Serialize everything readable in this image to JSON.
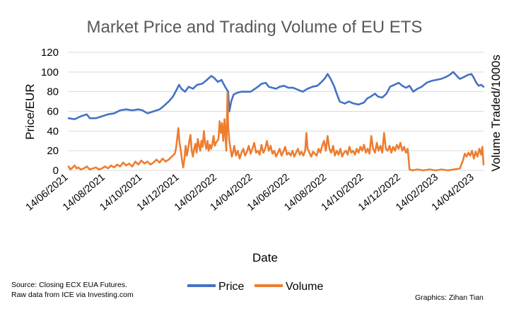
{
  "chart_data": {
    "type": "line",
    "title": "Market Price and Trading Volume of EU ETS",
    "xlabel": "Date",
    "ylabel": "Price/EUR",
    "y2label": "Volume Traded/1000s",
    "ylim": [
      0,
      120
    ],
    "yticks": [
      "0",
      "20",
      "40",
      "60",
      "80",
      "100",
      "120"
    ],
    "grid": true,
    "legend_position": "bottom",
    "x_start_date": "2021-06-14",
    "x_end_date": "2023-05-15",
    "x_tick_labels": [
      "14/06/2021",
      "14/08/2021",
      "14/10/2021",
      "14/12/2021",
      "14/02/2022",
      "14/04/2022",
      "14/06/2022",
      "14/08/2022",
      "14/10/2022",
      "14/12/2022",
      "14/02/2023",
      "14/04/2023"
    ],
    "x_tick_days": [
      0,
      61,
      122,
      183,
      245,
      304,
      365,
      426,
      487,
      548,
      610,
      669
    ],
    "series": [
      {
        "name": "Price",
        "color": "#4472C4",
        "points": [
          [
            0,
            53
          ],
          [
            10,
            52
          ],
          [
            20,
            55
          ],
          [
            30,
            57
          ],
          [
            35,
            53
          ],
          [
            45,
            53
          ],
          [
            55,
            55
          ],
          [
            65,
            57
          ],
          [
            75,
            58
          ],
          [
            85,
            61
          ],
          [
            95,
            62
          ],
          [
            105,
            61
          ],
          [
            115,
            62
          ],
          [
            122,
            61
          ],
          [
            130,
            58
          ],
          [
            140,
            60
          ],
          [
            150,
            62
          ],
          [
            158,
            66
          ],
          [
            165,
            70
          ],
          [
            172,
            75
          ],
          [
            178,
            82
          ],
          [
            182,
            87
          ],
          [
            186,
            83
          ],
          [
            192,
            80
          ],
          [
            198,
            85
          ],
          [
            205,
            83
          ],
          [
            212,
            87
          ],
          [
            220,
            88
          ],
          [
            228,
            92
          ],
          [
            235,
            96
          ],
          [
            240,
            94
          ],
          [
            246,
            90
          ],
          [
            252,
            92
          ],
          [
            258,
            85
          ],
          [
            263,
            80
          ],
          [
            265,
            60
          ],
          [
            268,
            70
          ],
          [
            272,
            77
          ],
          [
            278,
            79
          ],
          [
            285,
            80
          ],
          [
            292,
            80
          ],
          [
            300,
            80
          ],
          [
            305,
            82
          ],
          [
            312,
            85
          ],
          [
            318,
            88
          ],
          [
            325,
            89
          ],
          [
            330,
            85
          ],
          [
            336,
            84
          ],
          [
            342,
            83
          ],
          [
            348,
            85
          ],
          [
            355,
            86
          ],
          [
            362,
            84
          ],
          [
            370,
            84
          ],
          [
            378,
            82
          ],
          [
            386,
            80
          ],
          [
            394,
            83
          ],
          [
            402,
            85
          ],
          [
            410,
            86
          ],
          [
            417,
            90
          ],
          [
            423,
            94
          ],
          [
            427,
            98
          ],
          [
            432,
            93
          ],
          [
            438,
            85
          ],
          [
            442,
            78
          ],
          [
            447,
            70
          ],
          [
            455,
            68
          ],
          [
            462,
            70
          ],
          [
            470,
            68
          ],
          [
            478,
            67
          ],
          [
            487,
            69
          ],
          [
            492,
            73
          ],
          [
            498,
            75
          ],
          [
            505,
            78
          ],
          [
            510,
            75
          ],
          [
            517,
            74
          ],
          [
            524,
            78
          ],
          [
            530,
            85
          ],
          [
            537,
            87
          ],
          [
            544,
            89
          ],
          [
            550,
            86
          ],
          [
            556,
            84
          ],
          [
            562,
            86
          ],
          [
            568,
            80
          ],
          [
            575,
            83
          ],
          [
            582,
            85
          ],
          [
            590,
            89
          ],
          [
            598,
            91
          ],
          [
            606,
            92
          ],
          [
            614,
            93
          ],
          [
            622,
            95
          ],
          [
            628,
            97
          ],
          [
            634,
            100
          ],
          [
            640,
            96
          ],
          [
            645,
            93
          ],
          [
            652,
            95
          ],
          [
            658,
            97
          ],
          [
            664,
            98
          ],
          [
            668,
            94
          ],
          [
            672,
            89
          ],
          [
            676,
            86
          ],
          [
            680,
            87
          ],
          [
            684,
            85
          ]
        ]
      },
      {
        "name": "Volume",
        "color": "#ED7D31",
        "points": [
          [
            0,
            4
          ],
          [
            3,
            1
          ],
          [
            7,
            3
          ],
          [
            10,
            5
          ],
          [
            13,
            2
          ],
          [
            16,
            3
          ],
          [
            20,
            1
          ],
          [
            25,
            2
          ],
          [
            30,
            4
          ],
          [
            35,
            1
          ],
          [
            40,
            2
          ],
          [
            45,
            3
          ],
          [
            50,
            1
          ],
          [
            55,
            2
          ],
          [
            60,
            4
          ],
          [
            65,
            2
          ],
          [
            70,
            5
          ],
          [
            75,
            3
          ],
          [
            80,
            6
          ],
          [
            85,
            4
          ],
          [
            90,
            8
          ],
          [
            95,
            5
          ],
          [
            100,
            7
          ],
          [
            105,
            4
          ],
          [
            110,
            9
          ],
          [
            115,
            6
          ],
          [
            120,
            10
          ],
          [
            125,
            7
          ],
          [
            130,
            9
          ],
          [
            135,
            6
          ],
          [
            140,
            8
          ],
          [
            145,
            11
          ],
          [
            150,
            8
          ],
          [
            155,
            12
          ],
          [
            160,
            9
          ],
          [
            165,
            11
          ],
          [
            170,
            14
          ],
          [
            175,
            17
          ],
          [
            177,
            22
          ],
          [
            179,
            32
          ],
          [
            181,
            43
          ],
          [
            183,
            28
          ],
          [
            185,
            20
          ],
          [
            187,
            10
          ],
          [
            189,
            3
          ],
          [
            191,
            12
          ],
          [
            193,
            25
          ],
          [
            195,
            15
          ],
          [
            197,
            22
          ],
          [
            199,
            30
          ],
          [
            201,
            36
          ],
          [
            203,
            20
          ],
          [
            205,
            14
          ],
          [
            207,
            22
          ],
          [
            209,
            27
          ],
          [
            211,
            18
          ],
          [
            213,
            32
          ],
          [
            215,
            25
          ],
          [
            217,
            20
          ],
          [
            219,
            30
          ],
          [
            221,
            24
          ],
          [
            223,
            40
          ],
          [
            225,
            28
          ],
          [
            227,
            22
          ],
          [
            229,
            30
          ],
          [
            231,
            20
          ],
          [
            233,
            26
          ],
          [
            235,
            22
          ],
          [
            237,
            27
          ],
          [
            239,
            35
          ],
          [
            241,
            25
          ],
          [
            243,
            28
          ],
          [
            245,
            30
          ],
          [
            247,
            32
          ],
          [
            249,
            50
          ],
          [
            251,
            38
          ],
          [
            253,
            48
          ],
          [
            255,
            30
          ],
          [
            257,
            52
          ],
          [
            259,
            30
          ],
          [
            260,
            20
          ],
          [
            262,
            79
          ],
          [
            263,
            45
          ],
          [
            265,
            30
          ],
          [
            267,
            22
          ],
          [
            269,
            14
          ],
          [
            271,
            18
          ],
          [
            273,
            25
          ],
          [
            276,
            15
          ],
          [
            279,
            20
          ],
          [
            282,
            12
          ],
          [
            285,
            18
          ],
          [
            288,
            22
          ],
          [
            291,
            15
          ],
          [
            294,
            19
          ],
          [
            297,
            25
          ],
          [
            300,
            17
          ],
          [
            303,
            22
          ],
          [
            306,
            28
          ],
          [
            309,
            18
          ],
          [
            312,
            20
          ],
          [
            315,
            16
          ],
          [
            318,
            26
          ],
          [
            321,
            18
          ],
          [
            324,
            22
          ],
          [
            327,
            30
          ],
          [
            330,
            20
          ],
          [
            333,
            25
          ],
          [
            336,
            17
          ],
          [
            339,
            20
          ],
          [
            342,
            14
          ],
          [
            345,
            18
          ],
          [
            348,
            22
          ],
          [
            351,
            15
          ],
          [
            354,
            19
          ],
          [
            357,
            24
          ],
          [
            360,
            16
          ],
          [
            363,
            18
          ],
          [
            366,
            15
          ],
          [
            369,
            20
          ],
          [
            372,
            14
          ],
          [
            375,
            18
          ],
          [
            378,
            22
          ],
          [
            381,
            16
          ],
          [
            384,
            19
          ],
          [
            387,
            15
          ],
          [
            390,
            20
          ],
          [
            392,
            38
          ],
          [
            394,
            22
          ],
          [
            397,
            18
          ],
          [
            400,
            14
          ],
          [
            403,
            19
          ],
          [
            406,
            17
          ],
          [
            409,
            15
          ],
          [
            412,
            22
          ],
          [
            415,
            18
          ],
          [
            418,
            25
          ],
          [
            421,
            30
          ],
          [
            424,
            20
          ],
          [
            427,
            35
          ],
          [
            430,
            22
          ],
          [
            433,
            18
          ],
          [
            436,
            25
          ],
          [
            439,
            15
          ],
          [
            442,
            20
          ],
          [
            445,
            16
          ],
          [
            448,
            22
          ],
          [
            451,
            14
          ],
          [
            454,
            18
          ],
          [
            457,
            20
          ],
          [
            460,
            16
          ],
          [
            463,
            24
          ],
          [
            466,
            18
          ],
          [
            469,
            20
          ],
          [
            472,
            16
          ],
          [
            475,
            22
          ],
          [
            478,
            18
          ],
          [
            481,
            24
          ],
          [
            484,
            20
          ],
          [
            487,
            26
          ],
          [
            490,
            18
          ],
          [
            493,
            22
          ],
          [
            496,
            17
          ],
          [
            499,
            35
          ],
          [
            502,
            22
          ],
          [
            505,
            18
          ],
          [
            508,
            28
          ],
          [
            511,
            20
          ],
          [
            514,
            25
          ],
          [
            517,
            18
          ],
          [
            520,
            38
          ],
          [
            523,
            22
          ],
          [
            526,
            20
          ],
          [
            529,
            25
          ],
          [
            532,
            18
          ],
          [
            535,
            24
          ],
          [
            538,
            20
          ],
          [
            541,
            26
          ],
          [
            544,
            22
          ],
          [
            547,
            28
          ],
          [
            550,
            20
          ],
          [
            553,
            24
          ],
          [
            556,
            18
          ],
          [
            559,
            22
          ],
          [
            562,
            1
          ],
          [
            567,
            0
          ],
          [
            575,
            1
          ],
          [
            585,
            0
          ],
          [
            595,
            1
          ],
          [
            605,
            0
          ],
          [
            615,
            1
          ],
          [
            625,
            0
          ],
          [
            635,
            1
          ],
          [
            645,
            2
          ],
          [
            650,
            10
          ],
          [
            653,
            17
          ],
          [
            656,
            14
          ],
          [
            659,
            18
          ],
          [
            662,
            15
          ],
          [
            665,
            20
          ],
          [
            668,
            12
          ],
          [
            671,
            19
          ],
          [
            674,
            14
          ],
          [
            677,
            22
          ],
          [
            680,
            16
          ],
          [
            682,
            24
          ],
          [
            684,
            6
          ]
        ]
      }
    ]
  },
  "footer": {
    "source_line1": "Source: Closing ECX EUA Futures.",
    "source_line2": "Raw data from ICE via Investing.com",
    "credit": "Graphics: Zihan Tian"
  }
}
